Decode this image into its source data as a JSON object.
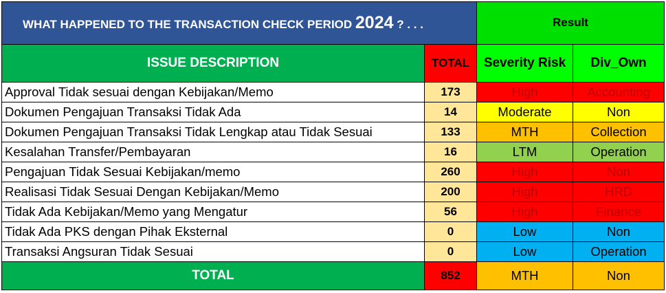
{
  "header": {
    "title_text": "WHAT HAPPENED TO THE TRANSACTION CHECK PERIOD ",
    "title_year": "2024",
    "title_suffix": " ? . . .",
    "result_label": "Result"
  },
  "columns": {
    "issue": "ISSUE DESCRIPTION",
    "total": "TOTAL",
    "severity": "Severity Risk",
    "div": "Div_Own"
  },
  "rows": [
    {
      "issue": "Approval Tidak sesuai dengan Kebijakan/Memo",
      "total": "173",
      "severity": "High",
      "div": "Accounting",
      "sev_bg": "#FF0000",
      "sev_color": "#C00000",
      "div_bg": "#FF0000",
      "div_color": "#C00000"
    },
    {
      "issue": "Dokumen Pengajuan Transaksi Tidak Ada",
      "total": "14",
      "severity": "Moderate",
      "div": "Non",
      "sev_bg": "#FFFF00",
      "sev_color": "#000000",
      "div_bg": "#FFFF00",
      "div_color": "#000000"
    },
    {
      "issue": "Dokumen Pengajuan Transaksi Tidak Lengkap atau Tidak Sesuai",
      "total": "133",
      "severity": "MTH",
      "div": "Collection",
      "sev_bg": "#FFC000",
      "sev_color": "#000000",
      "div_bg": "#FFC000",
      "div_color": "#000000"
    },
    {
      "issue": "Kesalahan Transfer/Pembayaran",
      "total": "16",
      "severity": "LTM",
      "div": "Operation",
      "sev_bg": "#92D050",
      "sev_color": "#000000",
      "div_bg": "#92D050",
      "div_color": "#000000"
    },
    {
      "issue": "Pengajuan Tidak Sesuai Kebijakan/memo",
      "total": "260",
      "severity": "High",
      "div": "Non",
      "sev_bg": "#FF0000",
      "sev_color": "#C00000",
      "div_bg": "#FF0000",
      "div_color": "#C00000"
    },
    {
      "issue": "Realisasi Tidak Sesuai Dengan Kebijakan/Memo",
      "total": "200",
      "severity": "High",
      "div": "HRD",
      "sev_bg": "#FF0000",
      "sev_color": "#C00000",
      "div_bg": "#FF0000",
      "div_color": "#C00000"
    },
    {
      "issue": "Tidak Ada Kebijakan/Memo yang Mengatur",
      "total": "56",
      "severity": "High",
      "div": "Finance",
      "sev_bg": "#FF0000",
      "sev_color": "#C00000",
      "div_bg": "#FF0000",
      "div_color": "#C00000"
    },
    {
      "issue": "Tidak Ada PKS dengan Pihak Eksternal",
      "total": "0",
      "severity": "Low",
      "div": "Non",
      "sev_bg": "#00B0F0",
      "sev_color": "#000000",
      "div_bg": "#00B0F0",
      "div_color": "#000000"
    },
    {
      "issue": "Transaksi Angsuran Tidak Sesuai",
      "total": "0",
      "severity": "Low",
      "div": "Operation",
      "sev_bg": "#00B0F0",
      "sev_color": "#000000",
      "div_bg": "#00B0F0",
      "div_color": "#000000"
    }
  ],
  "footer": {
    "label": "TOTAL",
    "total": "852",
    "severity": "MTH",
    "div": "Non",
    "sev_bg": "#FFC000",
    "div_bg": "#FFC000"
  }
}
